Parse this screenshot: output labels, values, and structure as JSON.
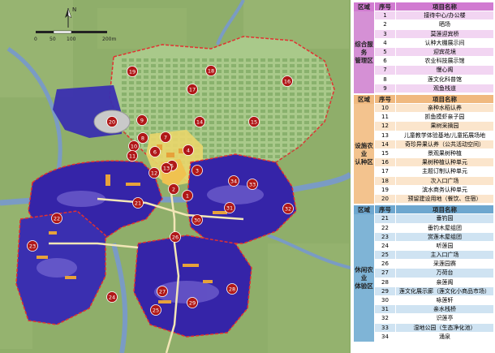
{
  "map": {
    "north_label": "N",
    "scale_labels": [
      "0",
      "50",
      "100",
      "200m"
    ],
    "markers": [
      "1",
      "2",
      "3",
      "4",
      "5",
      "6",
      "7",
      "8",
      "9",
      "10",
      "11",
      "12",
      "13",
      "14",
      "15",
      "16",
      "17",
      "18",
      "19",
      "20",
      "21",
      "22",
      "23",
      "24",
      "25",
      "26",
      "27",
      "28",
      "29",
      "30",
      "31",
      "32",
      "33",
      "34"
    ],
    "colors": {
      "farmland": "#8fae6a",
      "water": "#7a9bc4",
      "leisure": "#3524a8",
      "marker": "#b01818",
      "boundary": "#e23030"
    }
  },
  "legend": {
    "sections": [
      {
        "header": {
          "area": "区域",
          "num": "序号",
          "name": "项目名称"
        },
        "title": "综合服务管理区",
        "rows": [
          {
            "num": "1",
            "name": "接待中心/办公楼"
          },
          {
            "num": "2",
            "name": "晒场"
          },
          {
            "num": "3",
            "name": "莫莲迎宾桥"
          },
          {
            "num": "4",
            "name": "认种大棚展示间"
          },
          {
            "num": "5",
            "name": "迎宾花境"
          },
          {
            "num": "6",
            "name": "农业科技展示馆"
          },
          {
            "num": "7",
            "name": "慢心阁"
          },
          {
            "num": "8",
            "name": "莲文化科普馆"
          },
          {
            "num": "9",
            "name": "观鱼栈道"
          }
        ]
      },
      {
        "header": {
          "area": "区域",
          "num": "序号",
          "name": "项目名称"
        },
        "title": "设施农业认种区",
        "rows": [
          {
            "num": "10",
            "name": "亲种水稻认养"
          },
          {
            "num": "11",
            "name": "抓鱼摸虾亲子园"
          },
          {
            "num": "12",
            "name": "果树采摘园"
          },
          {
            "num": "13",
            "name": "儿童教学体验基地/儿童拓展场地"
          },
          {
            "num": "14",
            "name": "奇珍异果认养（公共活动空间）"
          },
          {
            "num": "15",
            "name": "景观果树种植"
          },
          {
            "num": "16",
            "name": "果树种植认种单元"
          },
          {
            "num": "17",
            "name": "主题订制认种单元"
          },
          {
            "num": "18",
            "name": "次入口广场"
          },
          {
            "num": "19",
            "name": "滨水商务认种单元"
          },
          {
            "num": "20",
            "name": "预留建设用地（餐饮、住宿）"
          }
        ]
      },
      {
        "header": {
          "area": "区域",
          "num": "序号",
          "name": "项目名称"
        },
        "title": "休闲农业体验区",
        "rows": [
          {
            "num": "21",
            "name": "垂钓园"
          },
          {
            "num": "22",
            "name": "垂钓木屋组团"
          },
          {
            "num": "23",
            "name": "赏莲木屋组团"
          },
          {
            "num": "24",
            "name": "听莲园"
          },
          {
            "num": "25",
            "name": "主入口广场"
          },
          {
            "num": "26",
            "name": "采莲园赛"
          },
          {
            "num": "27",
            "name": "万荷台"
          },
          {
            "num": "28",
            "name": "亲莲阁"
          },
          {
            "num": "29",
            "name": "莲文化展示廊（莲文化小商品市场）"
          },
          {
            "num": "30",
            "name": "咏莲轩"
          },
          {
            "num": "31",
            "name": "亲水栈桥"
          },
          {
            "num": "32",
            "name": "识莲亭"
          },
          {
            "num": "33",
            "name": "湿地公园（生态净化池）"
          },
          {
            "num": "34",
            "name": "涌泉"
          }
        ]
      }
    ]
  }
}
